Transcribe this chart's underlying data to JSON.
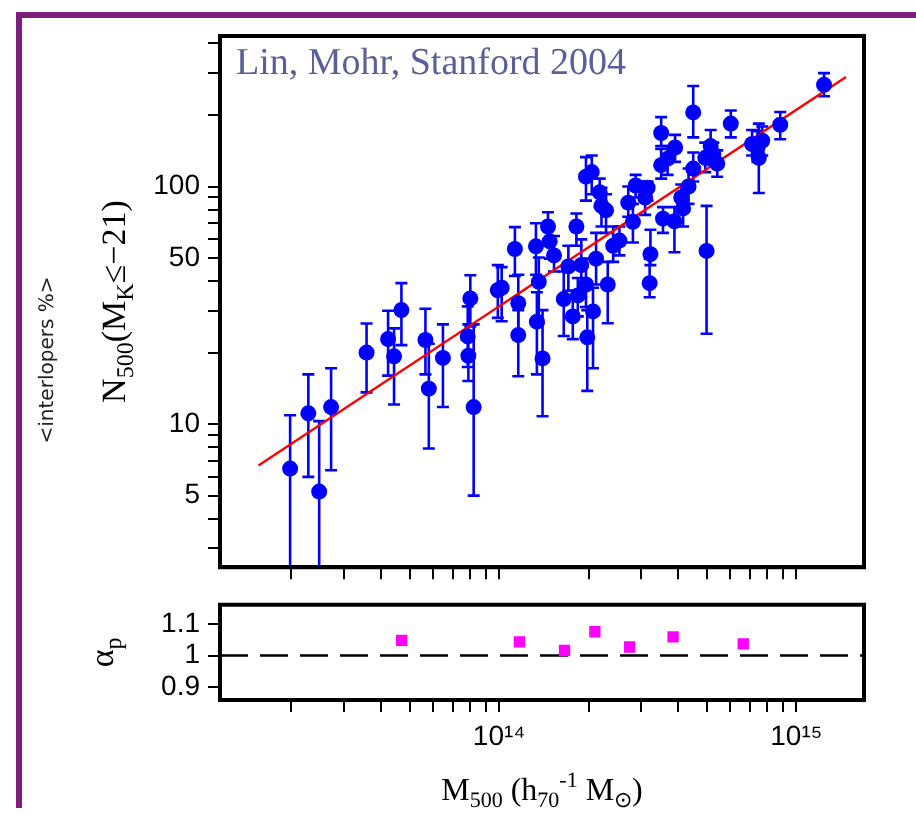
{
  "chart_data": [
    {
      "type": "scatter",
      "ylabel": "N$_{500}$(M$_{K}$≤−21)",
      "log": "xy",
      "grid": false,
      "tick_labels": "y",
      "marker": "circle",
      "annotations": [
        "Lin, Mohr, Stanford 2004",
        "<interlopers %>"
      ],
      "xlim": [
        11500000000000.0,
        1690000000000000.0
      ],
      "ylim": [
        2.5,
        430
      ],
      "xticks": [
        {
          "value": 20000000000000.0,
          "label": null
        },
        {
          "value": 30000000000000.0,
          "label": null
        },
        {
          "value": 40000000000000.0,
          "label": null
        },
        {
          "value": 50000000000000.0,
          "label": null
        },
        {
          "value": 60000000000000.0,
          "label": null
        },
        {
          "value": 70000000000000.0,
          "label": null
        },
        {
          "value": 80000000000000.0,
          "label": null
        },
        {
          "value": 90000000000000.0,
          "label": null
        },
        {
          "value": 100000000000000.0,
          "label": null
        },
        {
          "value": 200000000000000.0,
          "label": null
        },
        {
          "value": 300000000000000.0,
          "label": null
        },
        {
          "value": 400000000000000.0,
          "label": null
        },
        {
          "value": 500000000000000.0,
          "label": null
        },
        {
          "value": 600000000000000.0,
          "label": null
        },
        {
          "value": 700000000000000.0,
          "label": null
        },
        {
          "value": 800000000000000.0,
          "label": null
        },
        {
          "value": 900000000000000.0,
          "label": null
        },
        {
          "value": 1000000000000000.0,
          "label": null
        }
      ],
      "yticks": [
        {
          "value": 3,
          "label": null
        },
        {
          "value": 4,
          "label": null
        },
        5,
        {
          "value": 6,
          "label": null
        },
        {
          "value": 7,
          "label": null
        },
        {
          "value": 8,
          "label": null
        },
        {
          "value": 9,
          "label": null
        },
        10,
        {
          "value": 20,
          "label": null
        },
        {
          "value": 30,
          "label": null
        },
        {
          "value": 40,
          "label": null
        },
        50,
        {
          "value": 60,
          "label": null
        },
        {
          "value": 70,
          "label": null
        },
        {
          "value": 80,
          "label": null
        },
        {
          "value": 90,
          "label": null
        },
        100,
        {
          "value": 200,
          "label": null
        },
        {
          "value": 300,
          "label": null
        },
        {
          "value": 400,
          "label": null
        }
      ],
      "series": [
        {
          "type": "scatter",
          "color": "#0000ff",
          "x": [
            19800000000000.0,
            22800000000000.0,
            24800000000000.0,
            27200000000000.0,
            35800000000000.0,
            42300000000000.0,
            44300000000000.0,
            46900000000000.0,
            56500000000000.0,
            58000000000000.0,
            64700000000000.0,
            78400000000000.0,
            78800000000000.0,
            80000000000000.0,
            82100000000000.0,
            99000000000000.0,
            102000000000000.0,
            113000000000000.0,
            116000000000000.0,
            116000000000000.0,
            133000000000000.0,
            134000000000000.0,
            136000000000000.0,
            140000000000000.0,
            146000000000000.0,
            148000000000000.0,
            153000000000000.0,
            165000000000000.0,
            171000000000000.0,
            177000000000000.0,
            182000000000000.0,
            184000000000000.0,
            189000000000000.0,
            196000000000000.0,
            198000000000000.0,
            196000000000000.0,
            205000000000000.0,
            207000000000000.0,
            212000000000000.0,
            218000000000000.0,
            221000000000000.0,
            229000000000000.0,
            232000000000000.0,
            242000000000000.0,
            254000000000000.0,
            272000000000000.0,
            282000000000000.0,
            288000000000000.0,
            310000000000000.0,
            316000000000000.0,
            321000000000000.0,
            323000000000000.0,
            351000000000000.0,
            351000000000000.0,
            356000000000000.0,
            369000000000000.0,
            389000000000000.0,
            391000000000000.0,
            410000000000000.0,
            416000000000000.0,
            434000000000000.0,
            450000000000000.0,
            450000000000000.0,
            499000000000000.0,
            494000000000000.0,
            515000000000000.0,
            526000000000000.0,
            542000000000000.0,
            602000000000000.0,
            710000000000000.0,
            740000000000000.0,
            748000000000000.0,
            768000000000000.0,
            883000000000000.0,
            1240000000000000.0
          ],
          "values": [
            6.5,
            11.1,
            5.2,
            11.8,
            20,
            22.8,
            19.3,
            30.2,
            22.6,
            14.1,
            19,
            23.4,
            19.4,
            33.8,
            11.8,
            36.6,
            37.5,
            54.6,
            32.3,
            23.7,
            56,
            27,
            39.7,
            18.9,
            67.9,
            58.8,
            51.3,
            33.6,
            46.1,
            28.4,
            67.9,
            34.8,
            46.7,
            38.7,
            23.2,
            110,
            115,
            29.8,
            49.7,
            94.5,
            82.9,
            79.4,
            38.7,
            56.3,
            59.2,
            85.5,
            71,
            101,
            89.9,
            98.8,
            39.2,
            51.9,
            168,
            123,
            73.2,
            131,
            71.4,
            146,
            89.9,
            80.9,
            100,
            205,
            119,
            53.6,
            132,
            148,
            137,
            125,
            184,
            151,
            145,
            132,
            156,
            182,
            268
          ],
          "errors": [
            [
              2.5,
              10.9
            ],
            [
              6,
              16.2
            ],
            [
              2.5,
              10.3
            ],
            [
              6.4,
              17.2
            ],
            [
              13.6,
              26.5
            ],
            [
              16,
              30
            ],
            [
              12.1,
              25.3
            ],
            [
              21.5,
              39.2
            ],
            [
              16.2,
              30.6
            ],
            [
              7.9,
              21.8
            ],
            [
              11.8,
              26.3
            ],
            [
              17.4,
              31.3
            ],
            [
              15.2,
              26.3
            ],
            [
              25.8,
              42.3
            ],
            [
              5,
              26.3
            ],
            [
              28,
              46.7
            ],
            [
              27.1,
              45.8
            ],
            [
              42,
              67.5
            ],
            [
              24.6,
              42.5
            ],
            [
              15.9,
              30.2
            ],
            [
              42.5,
              70.1
            ],
            [
              16.2,
              35.9
            ],
            [
              26.6,
              50.3
            ],
            [
              10.8,
              30.2
            ],
            [
              59.9,
              77.9
            ],
            [
              49.7,
              67.9
            ],
            [
              43.9,
              61.9
            ],
            [
              23.5,
              43.9
            ],
            [
              36.4,
              56.3
            ],
            [
              22.8,
              36.4
            ],
            [
              56.3,
              77
            ],
            [
              28.4,
              41.2
            ],
            [
              34.2,
              59.9
            ],
            [
              31.1,
              49.7
            ],
            [
              13.8,
              30.2
            ],
            [
              87.2,
              133
            ],
            [
              92.8,
              135
            ],
            [
              17.2,
              37.5
            ],
            [
              38.7,
              63.8
            ],
            [
              81.9,
              108
            ],
            [
              67.9,
              98.8
            ],
            [
              63.8,
              92.8
            ],
            [
              26.6,
              48.2
            ],
            [
              48.2,
              67.9
            ],
            [
              51.3,
              67.9
            ],
            [
              74.6,
              100
            ],
            [
              58.1,
              84.5
            ],
            [
              89.9,
              112
            ],
            [
              76,
              105
            ],
            [
              87.2,
              105
            ],
            [
              34.2,
              49.7
            ],
            [
              46.7,
              65.8
            ],
            [
              148,
              196
            ],
            [
              108,
              144
            ],
            [
              63.8,
              81.9
            ],
            [
              112,
              148
            ],
            [
              52.9,
              81.9
            ],
            [
              127,
              165
            ],
            [
              77.9,
              102
            ],
            [
              67.9,
              92.8
            ],
            [
              84.5,
              119
            ],
            [
              161,
              265
            ],
            [
              105,
              139
            ],
            [
              24,
              82.9
            ],
            [
              115,
              153
            ],
            [
              128,
              173
            ],
            [
              123,
              153
            ],
            [
              110,
              142
            ],
            [
              161,
              209
            ],
            [
              135,
              173
            ],
            [
              127,
              171
            ],
            [
              93.9,
              184
            ],
            [
              135,
              179
            ],
            [
              158,
              206
            ],
            [
              240,
              300
            ]
          ]
        },
        {
          "type": "line",
          "color": "#ff0000",
          "marker": "none",
          "x": [
            15500000000000.0,
            1470000000000000.0
          ],
          "values": [
            6.7,
            289
          ]
        }
      ]
    },
    {
      "type": "scatter",
      "xlabel": "M$_{500}$ (h$_{70}$$^{-1}$ M$_{⊙}$)",
      "ylabel": "α$_{p}$",
      "log": "x",
      "grid": false,
      "marker": "square",
      "xlim": [
        11500000000000.0,
        1690000000000000.0
      ],
      "ylim": [
        0.86,
        1.16
      ],
      "xticks": [
        {
          "value": 20000000000000.0,
          "label": null
        },
        {
          "value": 30000000000000.0,
          "label": null
        },
        {
          "value": 40000000000000.0,
          "label": null
        },
        {
          "value": 50000000000000.0,
          "label": null
        },
        {
          "value": 60000000000000.0,
          "label": null
        },
        {
          "value": 70000000000000.0,
          "label": null
        },
        {
          "value": 80000000000000.0,
          "label": null
        },
        {
          "value": 90000000000000.0,
          "label": null
        },
        {
          "value": 100000000000000.0,
          "label": "10¹⁴"
        },
        {
          "value": 200000000000000.0,
          "label": null
        },
        {
          "value": 300000000000000.0,
          "label": null
        },
        {
          "value": 400000000000000.0,
          "label": null
        },
        {
          "value": 500000000000000.0,
          "label": null
        },
        {
          "value": 600000000000000.0,
          "label": null
        },
        {
          "value": 700000000000000.0,
          "label": null
        },
        {
          "value": 800000000000000.0,
          "label": null
        },
        {
          "value": 900000000000000.0,
          "label": null
        },
        {
          "value": 1000000000000000.0,
          "label": "10¹⁵"
        }
      ],
      "yticks": [
        0.9,
        1,
        1.1
      ],
      "ref_lines": [
        {
          "axis": "y",
          "value": 1,
          "color": "#000000",
          "line_style": "dashed"
        }
      ],
      "series": [
        {
          "type": "scatter",
          "color": "#ff00ff",
          "x": [
            47000000000000.0,
            117000000000000.0,
            166000000000000.0,
            210000000000000.0,
            275000000000000.0,
            385000000000000.0,
            663000000000000.0
          ],
          "values": [
            1.048,
            1.043,
            1.016,
            1.075,
            1.027,
            1.059,
            1.037
          ]
        }
      ]
    }
  ]
}
